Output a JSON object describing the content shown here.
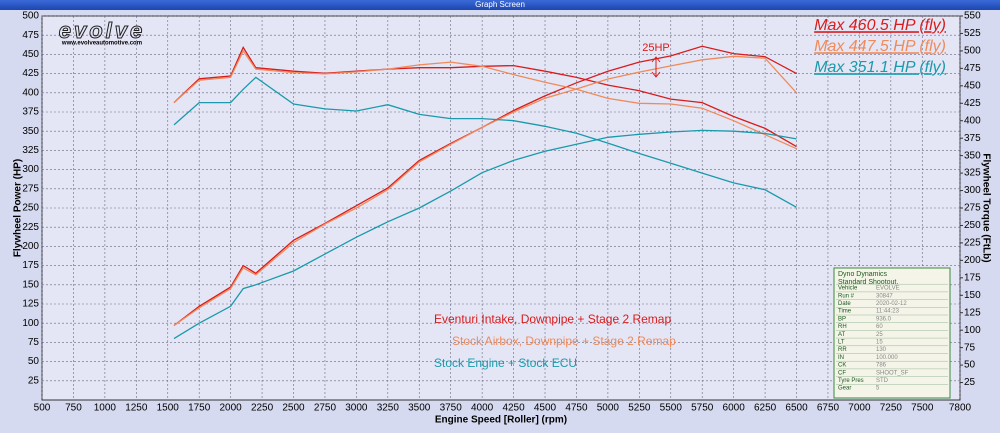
{
  "window_title": "Graph Screen",
  "logo": {
    "brand": "evolve",
    "url": "www.evolveautomotive.com"
  },
  "chart_data": {
    "type": "line",
    "x_label": "Engine Speed [Roller] (rpm)",
    "y_label": "Flywheel Power (HP)",
    "y2_label": "Flywheel Torque (FtLb)",
    "xlim": [
      500,
      7800
    ],
    "xticks": [
      500,
      750,
      1000,
      1250,
      1500,
      1750,
      2000,
      2250,
      2500,
      2750,
      3000,
      3250,
      3500,
      3750,
      4000,
      4250,
      4500,
      4750,
      5000,
      5250,
      5500,
      5750,
      6000,
      6250,
      6500,
      6750,
      7000,
      7250,
      7500,
      7800
    ],
    "ylim": [
      0,
      500
    ],
    "yticks": [
      25,
      50,
      75,
      100,
      125,
      150,
      175,
      200,
      225,
      250,
      275,
      300,
      325,
      350,
      375,
      400,
      425,
      450,
      475,
      500
    ],
    "y2lim": [
      0,
      550
    ],
    "y2ticks": [
      25,
      50,
      75,
      100,
      125,
      150,
      175,
      200,
      225,
      250,
      275,
      300,
      325,
      350,
      375,
      400,
      425,
      450,
      475,
      500,
      525,
      550
    ],
    "grid": true,
    "x": [
      1550,
      1750,
      2000,
      2100,
      2200,
      2500,
      2750,
      3000,
      3250,
      3500,
      3750,
      4000,
      4250,
      4500,
      4750,
      5000,
      5250,
      5500,
      5750,
      6000,
      6250,
      6500
    ],
    "series": [
      {
        "name": "Eventuri Intake, Downpipe + Stage 2 Remap",
        "color": "#d81c1c",
        "max_label": "Max 460.5 HP (fly)",
        "values": [
          97,
          122,
          147,
          175,
          165,
          208,
          230,
          253,
          276,
          312,
          334,
          355,
          377,
          396,
          413,
          428,
          440,
          448,
          460.5,
          451,
          447,
          425
        ],
        "torque": [
          426,
          460,
          464,
          505,
          476,
          471,
          468,
          471,
          474,
          476,
          476,
          478,
          479,
          471,
          462,
          451,
          443,
          431,
          426,
          406,
          389,
          363
        ]
      },
      {
        "name": "Stock Airbox, Downpipe + Stage 2 Remap",
        "color": "#f08a5a",
        "max_label": "Max 447.5 HP (fly)",
        "values": [
          97,
          120,
          145,
          172,
          163,
          205,
          229,
          250,
          274,
          310,
          333,
          355,
          375,
          393,
          405,
          418,
          427,
          435,
          443,
          447.5,
          445,
          400
        ],
        "torque": [
          426,
          458,
          462,
          500,
          474,
          469,
          467,
          470,
          474,
          480,
          484,
          478,
          466,
          455,
          445,
          432,
          425,
          424,
          418,
          400,
          380,
          360
        ]
      },
      {
        "name": "Stock Engine + Stock ECU",
        "color": "#1a9aaa",
        "max_label": "Max 351.1 HP (fly)",
        "values": [
          80,
          100,
          122,
          145,
          150,
          168,
          190,
          212,
          232,
          250,
          272,
          296,
          312,
          324,
          333,
          342,
          346,
          349,
          351.1,
          350,
          347,
          340
        ],
        "torque": [
          394,
          426,
          426,
          445,
          462,
          424,
          417,
          414,
          423,
          409,
          403,
          403,
          400,
          392,
          382,
          368,
          353,
          339,
          325,
          311,
          301,
          276
        ]
      }
    ],
    "annotation": "25HP"
  },
  "table": {
    "title": [
      "Dyno Dynamics",
      "Standard Shootout."
    ],
    "rows": [
      [
        "Vehicle",
        "EVOLVE"
      ],
      [
        "Run #",
        "30847"
      ],
      [
        "Date",
        "2020-02-12"
      ],
      [
        "Time",
        "11:44:23"
      ],
      [
        "BP",
        "936.0"
      ],
      [
        "RH",
        "60"
      ],
      [
        "AT",
        "25"
      ],
      [
        "LT",
        "15"
      ],
      [
        "RR",
        "130"
      ],
      [
        "IN",
        "100.000"
      ],
      [
        "CK",
        "786"
      ],
      [
        "CF",
        "SHOOT_SF"
      ],
      [
        "Tyre Pres",
        "STD"
      ],
      [
        "Gear",
        "5"
      ]
    ]
  }
}
